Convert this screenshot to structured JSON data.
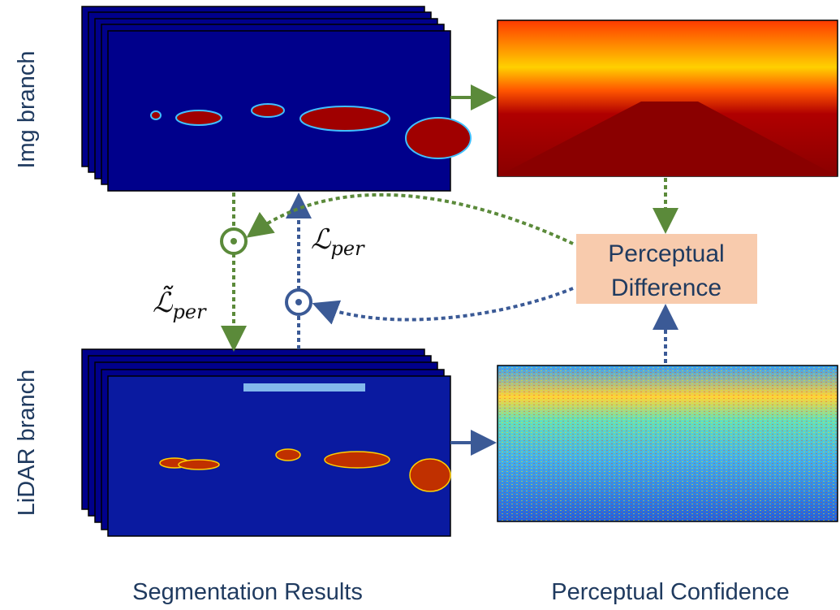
{
  "branches": {
    "img": "Img branch",
    "lidar": "LiDAR branch"
  },
  "difference_box": {
    "line1": "Perceptual",
    "line2": "Difference"
  },
  "losses": {
    "per": {
      "symbol": "ℒ",
      "subscript": "per"
    },
    "per_tilde": {
      "symbol": "ℒ̃",
      "subscript": "per"
    }
  },
  "captions": {
    "segmentation": "Segmentation Results",
    "confidence": "Perceptual Confidence"
  }
}
